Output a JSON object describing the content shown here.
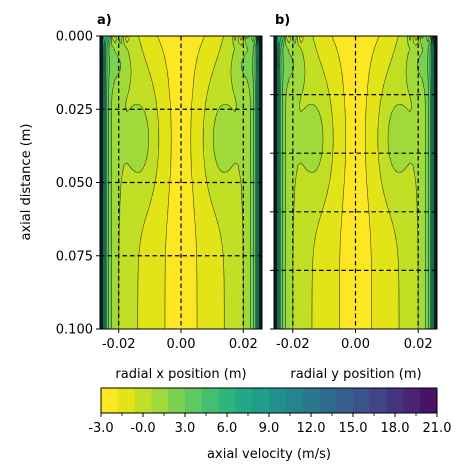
{
  "chart_data": [
    {
      "type": "heatmap",
      "panel_label": "a)",
      "xlabel": "radial x position (m)",
      "ylabel": "axial distance (m)",
      "xlim": [
        -0.026,
        0.026
      ],
      "ylim": [
        0.1,
        0.0
      ],
      "xticks": [
        "-0.02",
        "0.00",
        "0.02"
      ],
      "yticks": [
        "0.000",
        "0.025",
        "0.050",
        "0.075",
        "0.100"
      ],
      "dashed_vertical_lines_x": [
        -0.02,
        0.0,
        0.02
      ],
      "dashed_horizontal_lines_y": [
        0.025,
        0.05,
        0.075
      ],
      "field_description_values": {
        "core_max_m_s": -2.0,
        "wall_min_m_s": 21.0,
        "wall_x_m": 0.026
      }
    },
    {
      "type": "heatmap",
      "panel_label": "b)",
      "xlabel": "radial y position (m)",
      "xlim": [
        -0.026,
        0.026
      ],
      "ylim": [
        0.1,
        0.0
      ],
      "xticks": [
        "-0.02",
        "0.00",
        "0.02"
      ],
      "dashed_vertical_lines_x": [
        -0.02,
        0.0,
        0.02
      ],
      "dashed_horizontal_lines_y": [
        0.02,
        0.04,
        0.06,
        0.08
      ],
      "field_description_values": {
        "core_max_m_s": -2.0,
        "wall_min_m_s": 21.0,
        "wall_x_m": 0.026
      }
    }
  ],
  "colorbar": {
    "label": "axial velocity (m/s)",
    "levels_from": -3.0,
    "levels_to": 21.0,
    "level_step": 1.5,
    "tick_labels": [
      "-3.0",
      "-0.0",
      "3.0",
      "6.0",
      "9.0",
      "12.0",
      "15.0",
      "18.0",
      "21.0"
    ],
    "colors": [
      "#fde725",
      "#e2e418",
      "#c0df25",
      "#9fda3a",
      "#7ad151",
      "#5ec962",
      "#44bf70",
      "#2fb47c",
      "#22a884",
      "#1f9e89",
      "#21918c",
      "#25848e",
      "#2a788e",
      "#306a8e",
      "#355f8d",
      "#3b528b",
      "#414487",
      "#46337f",
      "#482475",
      "#471365"
    ]
  }
}
